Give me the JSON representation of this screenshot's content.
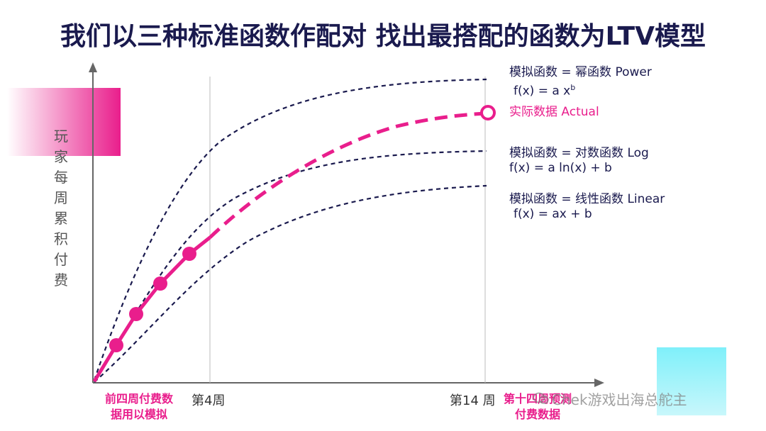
{
  "title": "我们以三种标准函数作配对 找出最搭配的函数为LTV模型",
  "y_axis_label": "玩家每周累积付费",
  "legend": {
    "power": {
      "label": "模拟函数 = 幂函数 Power",
      "formula": "f(x) = a x",
      "formula_sup": "b"
    },
    "actual": {
      "label": "实际数据 Actual"
    },
    "log": {
      "label": "模拟函数 = 对数函数 Log",
      "formula": "f(x) = a ln(x) + b"
    },
    "linear": {
      "label": "模拟函数 = 线性函数 Linear",
      "formula": "f(x) = ax + b"
    }
  },
  "x_ticks": {
    "week4": "第4周",
    "week14": "第14 周"
  },
  "notes": {
    "left": [
      "前四周付费数",
      "据用以模拟"
    ],
    "right": [
      "第十四周预测",
      "付费数据"
    ]
  },
  "watermark": "Chek游戏出海总舵主",
  "colors": {
    "accent": "#e91e8c",
    "navy": "#1a1a4e",
    "cyan": "#7ff0fa"
  },
  "icons": {
    "watermark": "wechat-icon"
  }
}
